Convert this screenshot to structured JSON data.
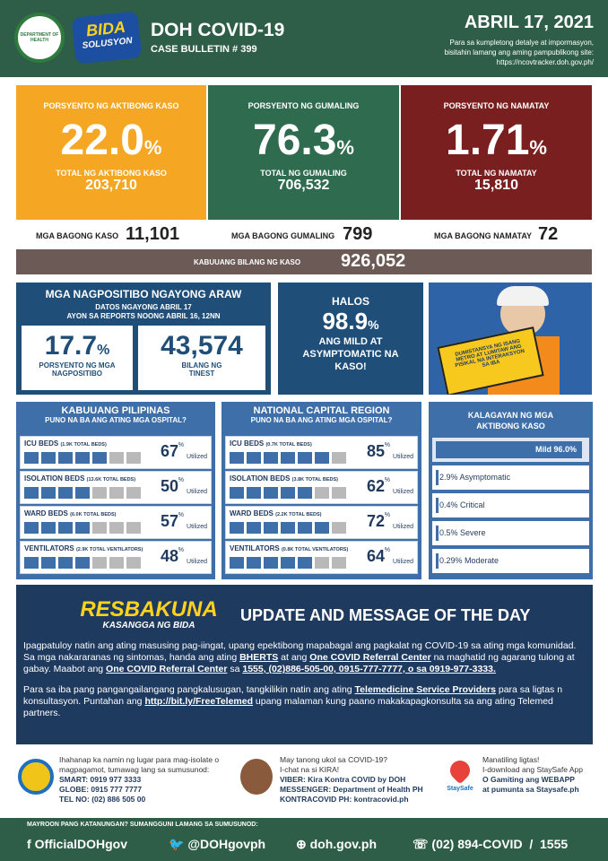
{
  "header": {
    "seal": "DEPARTMENT OF HEALTH",
    "logo_top": "BIDA",
    "logo_bottom": "SOLUSYON",
    "title": "DOH COVID-19",
    "bulletin": "CASE BULLETIN # 399",
    "date": "ABRIL 17, 2021",
    "info": [
      "Para sa kumpletong detalye at impormasyon,",
      "bisitahin lamang ang aming pampublikong site:",
      "https://ncovtracker.doh.gov.ph/"
    ]
  },
  "cards": [
    {
      "label": "PORSYENTO NG AKTIBONG KASO",
      "value": "22.0",
      "unit": "%",
      "total_label": "TOTAL NG AKTIBONG KASO",
      "total": "203,710"
    },
    {
      "label": "PORSYENTO NG GUMALING",
      "value": "76.3",
      "unit": "%",
      "total_label": "TOTAL NG GUMALING",
      "total": "706,532"
    },
    {
      "label": "PORSYENTO NG NAMATAY",
      "value": "1.71",
      "unit": "%",
      "total_label": "TOTAL NG NAMATAY",
      "total": "15,810"
    }
  ],
  "new": [
    {
      "label": "MGA BAGONG KASO",
      "value": "11,101"
    },
    {
      "label": "MGA BAGONG GUMALING",
      "value": "799"
    },
    {
      "label": "MGA BAGONG NAMATAY",
      "value": "72"
    }
  ],
  "total": {
    "label": "KABUUANG BILANG NG KASO",
    "value": "926,052"
  },
  "positivity": {
    "title": "MGA NAGPOSITIBO NGAYONG ARAW",
    "sub": [
      "DATOS NGAYONG ABRIL 17",
      "AYON SA REPORTS NOONG ABRIL 16, 12NN"
    ],
    "rate": "17.7",
    "unit": "%",
    "rate_label": "PORSYENTO NG MGA NAGPOSITIBO",
    "tests": "43,574",
    "tests_label": "BILANG NG TINEST"
  },
  "mild": {
    "top": "HALOS",
    "value": "98.9",
    "unit": "%",
    "text": "ANG MILD AT ASYMPTOMATIC NA KASO!"
  },
  "poster": {
    "sign": "DUMISTANSYA NG ISANG METRO AT LUMITAW ANG PISIKAL NA INTERAKSYON SA IBA"
  },
  "hospitals": [
    {
      "title": "KABUUANG PILIPINAS",
      "subtitle": "PUNO NA BA ANG ATING MGA OSPITAL?",
      "rows": [
        {
          "label": "ICU BEDS",
          "beds": "(1.9K TOTAL BEDS)",
          "value": "67",
          "unit": "%",
          "note": "Utilized"
        },
        {
          "label": "ISOLATION BEDS",
          "beds": "(13.6K TOTAL BEDS)",
          "value": "50",
          "unit": "%",
          "note": "Utilized"
        },
        {
          "label": "WARD BEDS",
          "beds": "(6.0K TOTAL BEDS)",
          "value": "57",
          "unit": "%",
          "note": "Utilized"
        },
        {
          "label": "VENTILATORS",
          "beds": "(2.9K TOTAL VENTILATORS)",
          "value": "48",
          "unit": "%",
          "note": "Utilized"
        }
      ]
    },
    {
      "title": "NATIONAL CAPITAL REGION",
      "subtitle": "PUNO NA BA ANG ATING MGA OSPITAL?",
      "rows": [
        {
          "label": "ICU BEDS",
          "beds": "(0.7K TOTAL BEDS)",
          "value": "85",
          "unit": "%",
          "note": "Utilized"
        },
        {
          "label": "ISOLATION BEDS",
          "beds": "(3.8K TOTAL BEDS)",
          "value": "62",
          "unit": "%",
          "note": "Utilized"
        },
        {
          "label": "WARD BEDS",
          "beds": "(2.2K TOTAL BEDS)",
          "value": "72",
          "unit": "%",
          "note": "Utilized"
        },
        {
          "label": "VENTILATORS",
          "beds": "(0.8K TOTAL VENTILATORS)",
          "value": "64",
          "unit": "%",
          "note": "Utilized"
        }
      ]
    }
  ],
  "status": {
    "title": "KALAGAYAN NG MGA AKTIBONG KASO",
    "rows": [
      "Mild 96.0%",
      "2.9% Asymptomatic",
      "0.4% Critical",
      "0.5% Severe",
      "0.29% Moderate"
    ]
  },
  "update": {
    "logo": "RESBAKUNA",
    "logo_sub": "KASANGGA NG BIDA",
    "heading": "UPDATE AND MESSAGE OF THE DAY",
    "paragraphs": [
      [
        {
          "text": "Ipagpatuloy natin ang ating masusing pag-iingat, upang epektibong mapabagal ang pagkalat ng COVID-19 sa ating mga komunidad. Sa mga nakararanas ng sintomas, handa ang ating "
        },
        {
          "text": "BHERTS",
          "underline": true
        },
        {
          "text": " at ang "
        },
        {
          "text": "One COVID Referral Center",
          "underline": true
        },
        {
          "text": " na maghatid ng agarang tulong at gabay. Maabot ang "
        },
        {
          "text": "One COVID Referral Center",
          "underline": true
        },
        {
          "text": " sa "
        },
        {
          "text": "1555, (02)886-505-00, 0915-777-7777, o sa 0919-977-3333.",
          "underline": true
        }
      ],
      [
        {
          "text": "Para sa iba pang pangangailangang pangkalusugan, tangkilikin natin ang ating "
        },
        {
          "text": "Telemedicine Service Providers",
          "underline": true
        },
        {
          "text": " para sa ligtas n konsultasyon. Puntahan ang "
        },
        {
          "text": "http://bit.ly/FreeTelemed",
          "underline": true
        },
        {
          "text": " upang malaman kung paano makakapagkonsulta sa ang ating Telemed partners."
        }
      ]
    ]
  },
  "contacts": [
    {
      "lines": [
        "Ihahanap ka namin ng lugar para mag-isolate o",
        "magpagamot, tumawag lang sa sumusunod:",
        "SMART: 0919 977 3333",
        "GLOBE: 0915 777 7777",
        "TEL NO: (02) 886 505 00"
      ]
    },
    {
      "lines": [
        "May tanong ukol sa COVID-19?",
        "I-chat na si KIRA!",
        "VIBER: Kira Kontra COVID by DOH",
        "MESSENGER: Department of Health PH",
        "KONTRACOVID PH: kontracovid.ph"
      ]
    },
    {
      "logo": "StaySafe",
      "lines": [
        "Manatiling ligtas!",
        "I-download ang StaySafe App",
        "O Gamiting ang WEBAPP",
        "at pumunta sa Staysafe.ph"
      ]
    }
  ],
  "footer": {
    "prompt": "MAYROON PANG KATANUNGAN? SUMANGGUNI LAMANG SA SUMUSUNOD:",
    "facebook": "OfficialDOHgov",
    "twitter": "@DOHgovph",
    "web": "doh.gov.ph",
    "phone": "(02) 894-COVID  /  1555"
  }
}
